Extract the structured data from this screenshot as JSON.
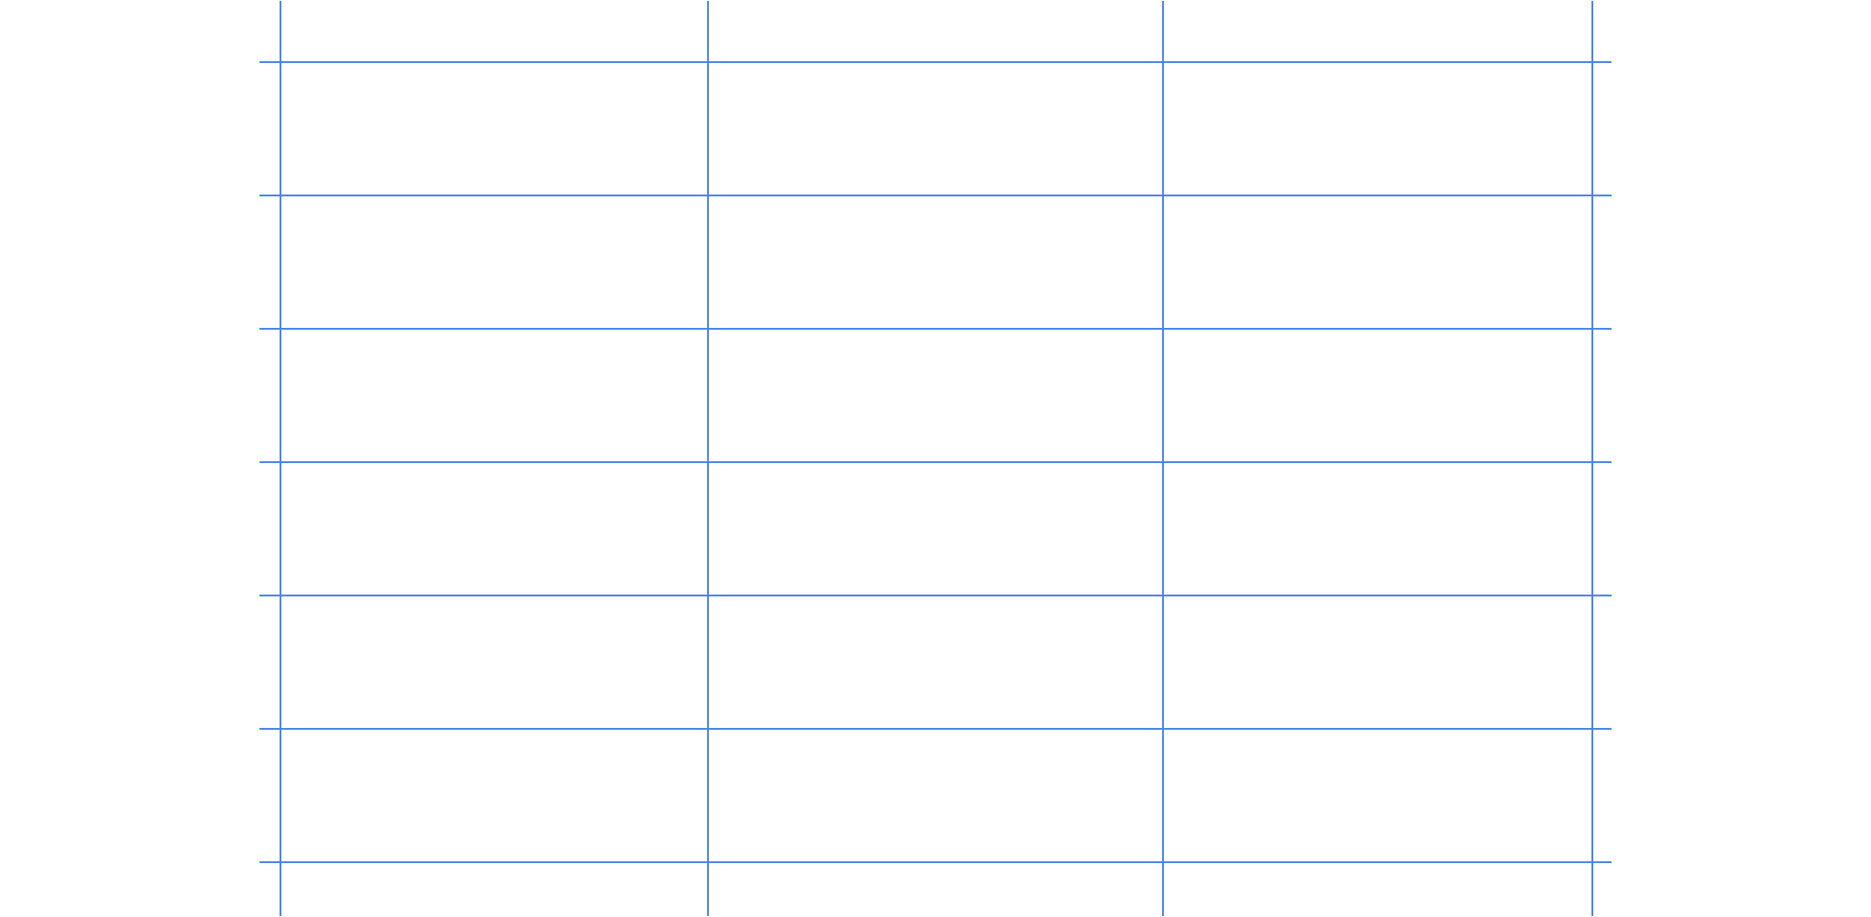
{
  "colors": {
    "background": "#ffffff",
    "grid_line": "#4a86e8"
  },
  "grid": {
    "columns": 3,
    "rows": 6,
    "cells": [
      [
        "",
        "",
        ""
      ],
      [
        "",
        "",
        ""
      ],
      [
        "",
        "",
        ""
      ],
      [
        "",
        "",
        ""
      ],
      [
        "",
        "",
        ""
      ],
      [
        "",
        "",
        ""
      ]
    ]
  }
}
